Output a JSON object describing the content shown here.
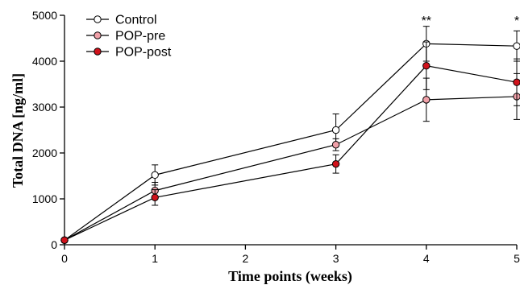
{
  "chart_data": {
    "type": "line",
    "title": "",
    "xlabel": "Time points (weeks)",
    "ylabel": "Total DNA [ng/ml]",
    "x": [
      0,
      1,
      3,
      4,
      5
    ],
    "xticks": [
      "0",
      "1",
      "2",
      "3",
      "4",
      "5"
    ],
    "yticks": [
      "0",
      "1000",
      "2000",
      "3000",
      "4000",
      "5000"
    ],
    "xlim": [
      0,
      5
    ],
    "ylim": [
      0,
      5000
    ],
    "grid": false,
    "legend_position": "top-left",
    "series": [
      {
        "name": "Control",
        "marker_fill": "#ffffff",
        "values": [
          100,
          1520,
          2500,
          4380,
          4330
        ],
        "errors": [
          0,
          220,
          350,
          380,
          330
        ]
      },
      {
        "name": "POP-pre",
        "marker_fill": "#f0a0a8",
        "values": [
          100,
          1180,
          2180,
          3160,
          3230
        ],
        "errors": [
          0,
          180,
          130,
          470,
          500
        ]
      },
      {
        "name": "POP-post",
        "marker_fill": "#d0121b",
        "values": [
          100,
          1030,
          1760,
          3900,
          3540
        ],
        "errors": [
          0,
          170,
          200,
          520,
          510
        ]
      }
    ],
    "annotations": [
      {
        "x": 4,
        "y": 4950,
        "text": "**"
      },
      {
        "x": 5,
        "y": 4950,
        "text": "*"
      }
    ]
  }
}
